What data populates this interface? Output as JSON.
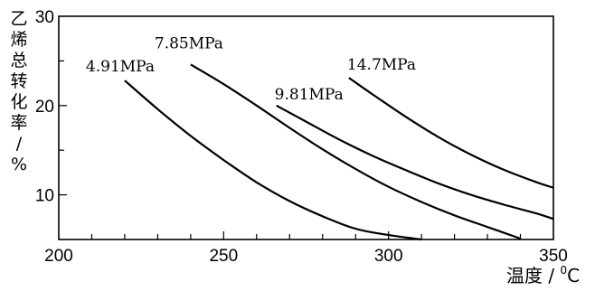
{
  "chart_data": {
    "type": "line",
    "title": "",
    "xlabel_main": "温度 / ",
    "xlabel_sup": "0",
    "xlabel_unit": "C",
    "ylabel_chars": [
      "乙",
      "烯",
      "总",
      "转",
      "化",
      "率",
      "/",
      "%"
    ],
    "xlim": [
      200,
      350
    ],
    "ylim": [
      5,
      30
    ],
    "x_ticks": [
      200,
      250,
      300,
      350
    ],
    "y_ticks": [
      10,
      20,
      30
    ],
    "series": [
      {
        "name": "4.91MPa",
        "x": [
          220,
          230,
          240,
          250,
          260,
          270,
          280,
          290,
          300,
          310
        ],
        "y": [
          22.8,
          19.6,
          16.6,
          13.9,
          11.4,
          9.3,
          7.6,
          6.2,
          5.5,
          5.0
        ]
      },
      {
        "name": "7.85MPa",
        "x": [
          240,
          250,
          260,
          270,
          280,
          290,
          300,
          310,
          320,
          330,
          340
        ],
        "y": [
          24.6,
          22.4,
          20.0,
          17.5,
          15.1,
          12.9,
          10.9,
          9.2,
          7.7,
          6.4,
          5.1
        ]
      },
      {
        "name": "9.81MPa",
        "x": [
          266,
          275,
          285,
          295,
          305,
          315,
          325,
          335,
          345,
          350
        ],
        "y": [
          20.0,
          18.2,
          16.2,
          14.4,
          12.8,
          11.3,
          10.0,
          8.9,
          7.9,
          7.3
        ]
      },
      {
        "name": "14.7MPa",
        "x": [
          288,
          295,
          305,
          315,
          325,
          335,
          345,
          350
        ],
        "y": [
          23.1,
          21.3,
          18.8,
          16.5,
          14.5,
          12.8,
          11.4,
          10.8
        ]
      }
    ],
    "series_labels": [
      "4.91MPa",
      "7.85MPa",
      "9.81MPa",
      "14.7MPa"
    ],
    "grid": false,
    "legend": "none"
  }
}
